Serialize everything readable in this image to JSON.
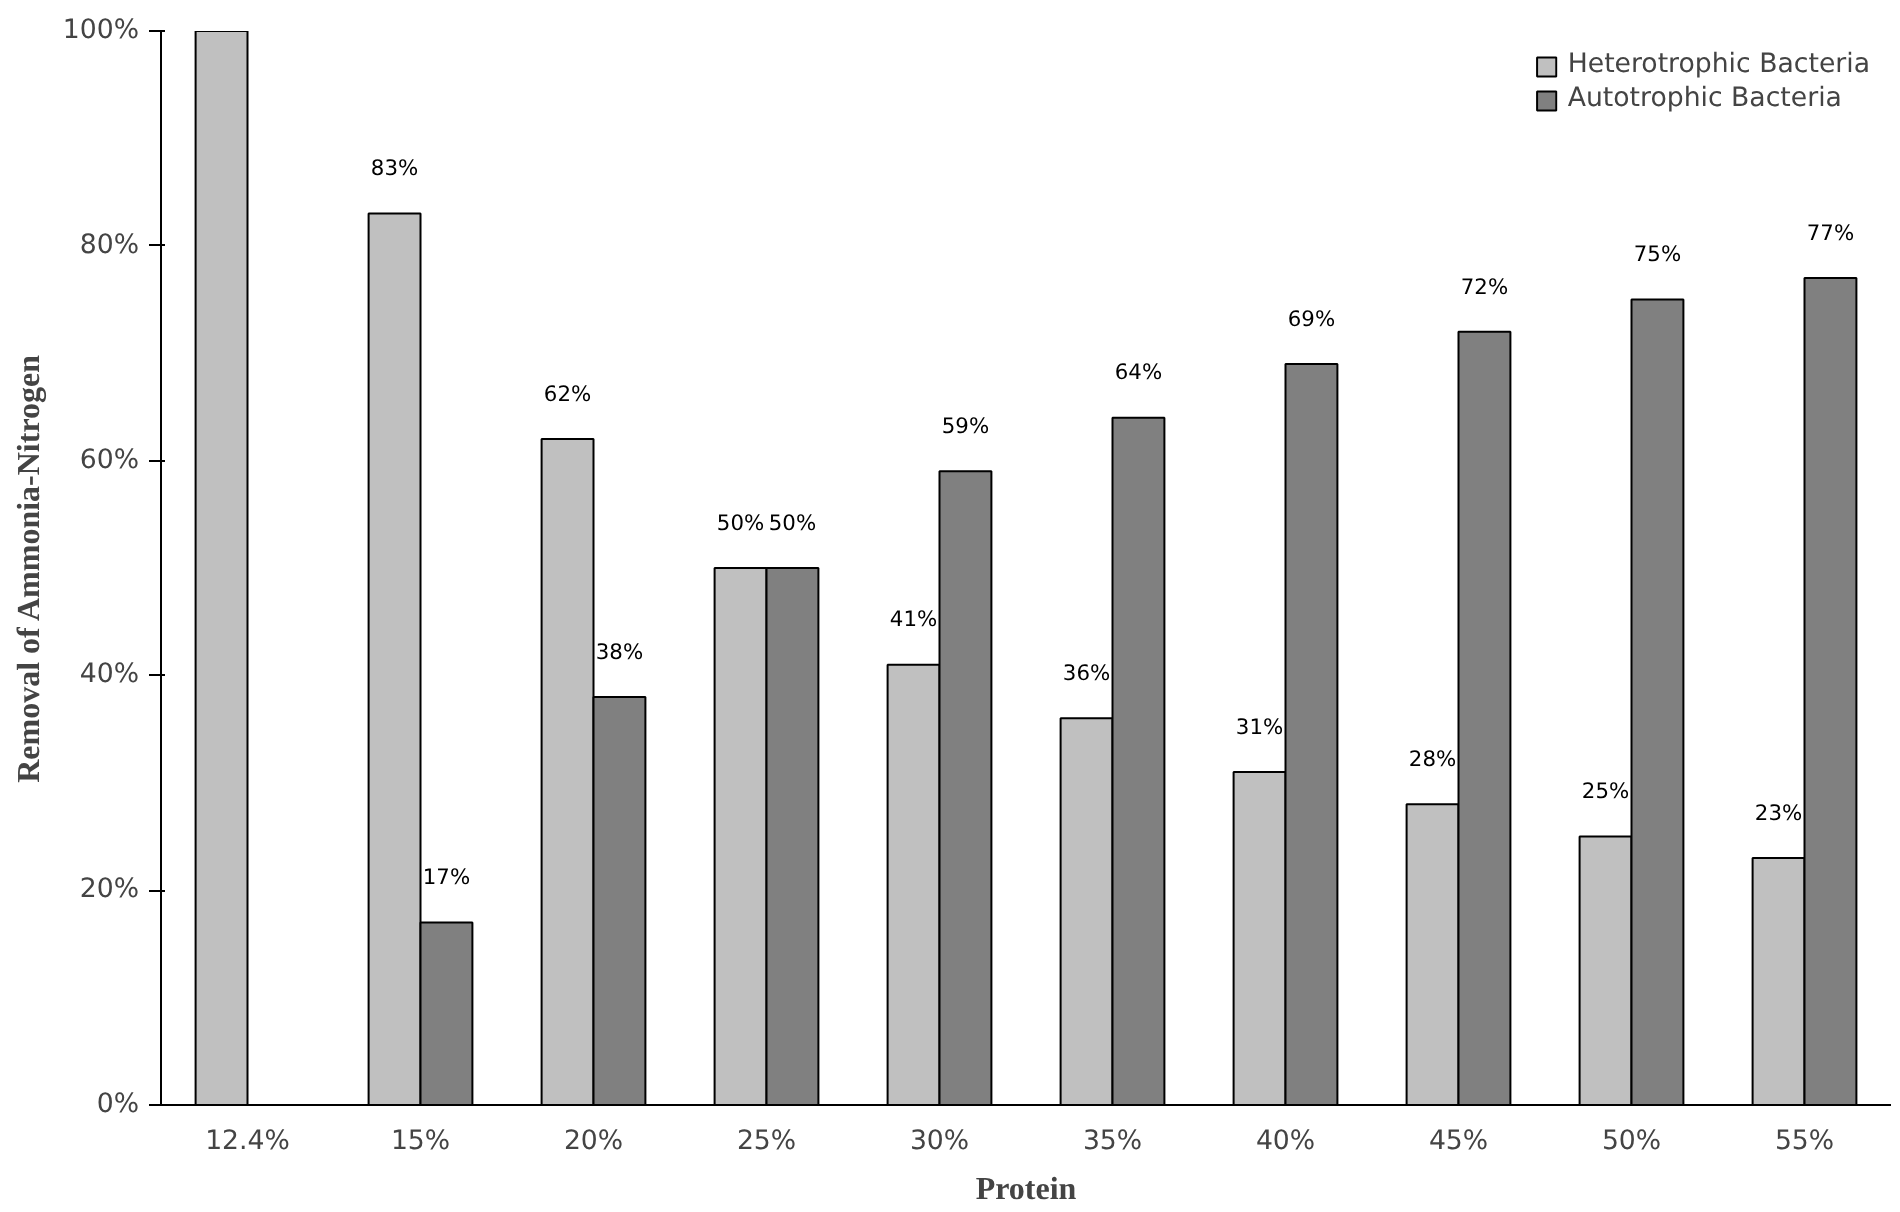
{
  "chart_data": {
    "type": "bar",
    "xlabel": "Protein",
    "ylabel": "Removal of Ammonia-Nitrogen",
    "categories": [
      "12.4%",
      "15%",
      "20%",
      "25%",
      "30%",
      "35%",
      "40%",
      "45%",
      "50%",
      "55%"
    ],
    "series": [
      {
        "name": "Heterotrophic Bacteria",
        "color": "#c0c0c0",
        "values": [
          100,
          83,
          62,
          50,
          41,
          36,
          31,
          28,
          25,
          23
        ],
        "value_labels": [
          null,
          "83%",
          "62%",
          "50%",
          "41%",
          "36%",
          "31%",
          "28%",
          "25%",
          "23%"
        ]
      },
      {
        "name": "Autotrophic Bacteria",
        "color": "#808080",
        "values": [
          null,
          17,
          38,
          50,
          59,
          64,
          69,
          72,
          75,
          77
        ],
        "value_labels": [
          null,
          "17%",
          "38%",
          "50%",
          "59%",
          "64%",
          "69%",
          "72%",
          "75%",
          "77%"
        ]
      }
    ],
    "ylim": [
      0,
      100
    ],
    "yticks": [
      {
        "value": 0,
        "label": "0%"
      },
      {
        "value": 20,
        "label": "20%"
      },
      {
        "value": 40,
        "label": "40%"
      },
      {
        "value": 60,
        "label": "60%"
      },
      {
        "value": 80,
        "label": "80%"
      },
      {
        "value": 100,
        "label": "100%"
      }
    ],
    "grid": false,
    "legend": "top right"
  }
}
